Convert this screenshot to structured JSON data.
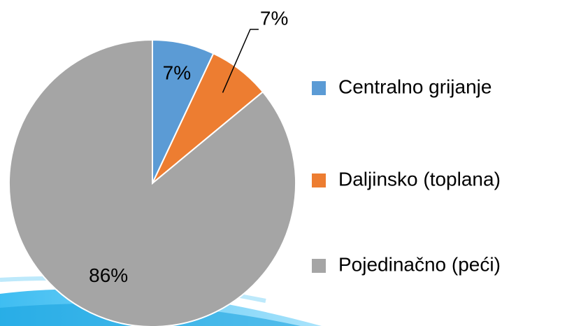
{
  "chart_data": {
    "type": "pie",
    "categories": [
      "Centralno grijanje",
      "Daljinsko (toplana)",
      "Pojedinačno (peći)"
    ],
    "values": [
      7,
      7,
      86
    ],
    "value_labels": [
      "7%",
      "7%",
      "86%"
    ],
    "colors": [
      "#5b9bd5",
      "#ed7d31",
      "#a5a5a5"
    ],
    "legend": "right"
  }
}
